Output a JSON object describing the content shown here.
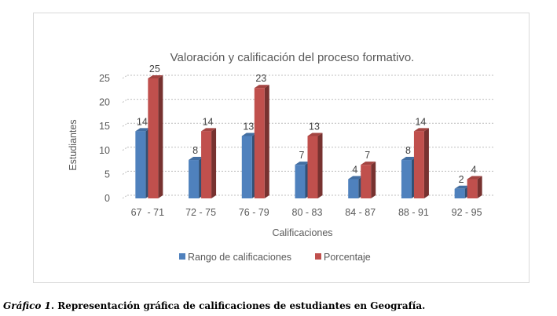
{
  "chart_data": {
    "type": "bar",
    "title": "Valoración y calificación del proceso formativo.",
    "xlabel": "Calificaciones",
    "ylabel": "Estudiantes",
    "categories": [
      "67  - 71",
      "72 - 75",
      "76 - 79",
      "80 - 83",
      "84 - 87",
      "88 - 91",
      "92 - 95"
    ],
    "series": [
      {
        "name": "Rango de calificaciones",
        "values": [
          14,
          8,
          13,
          7,
          4,
          8,
          2
        ],
        "color": "#4f81bd"
      },
      {
        "name": "Porcentaje",
        "values": [
          25,
          14,
          23,
          13,
          7,
          14,
          4
        ],
        "color": "#c0504d"
      }
    ],
    "ylim": [
      0,
      25
    ],
    "yticks": [
      0,
      5,
      10,
      15,
      20,
      25
    ],
    "grid": true,
    "legend_position": "bottom"
  },
  "caption": {
    "label": "Gráfico 1",
    "text": ". Representación gráfica de calificaciones de estudiantes en Geografía."
  }
}
